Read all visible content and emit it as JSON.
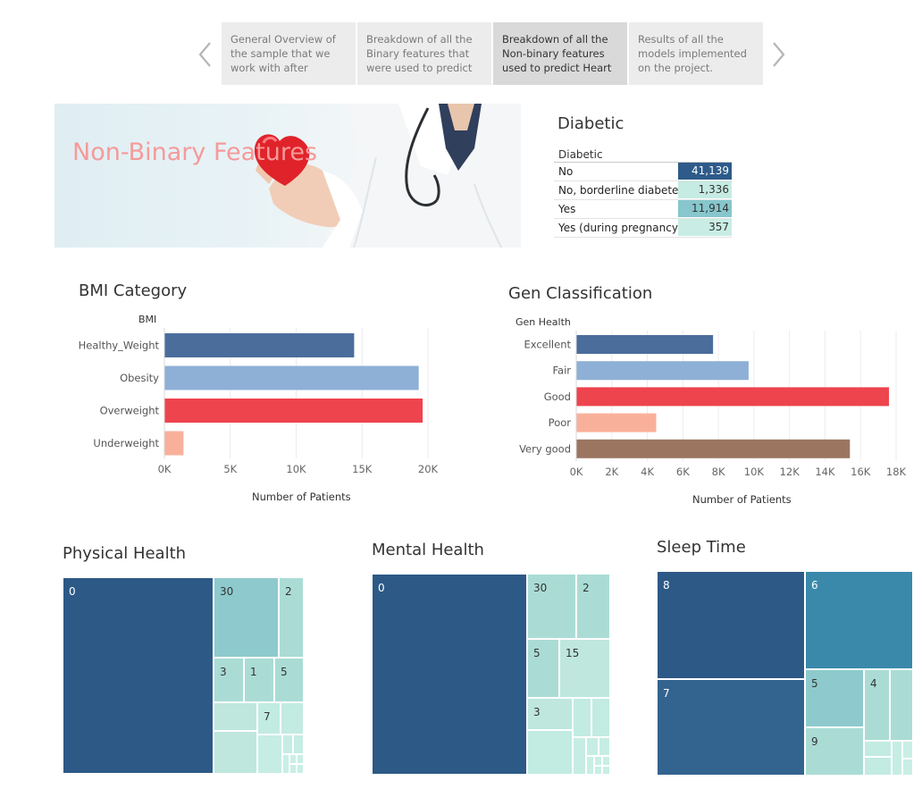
{
  "story": {
    "points": [
      {
        "text": "General Overview of the sample that we work with after",
        "active": false
      },
      {
        "text": "Breakdown of all the Binary features that were used to predict",
        "active": false
      },
      {
        "text": "Breakdown of all the Non-binary features used to predict Heart",
        "active": true
      },
      {
        "text": "Results of all the models implemented on the project.",
        "active": false
      }
    ]
  },
  "banner": {
    "title": "Non-Binary Features"
  },
  "diabetic": {
    "title": "Diabetic",
    "column_header": "Diabetic",
    "rows": [
      {
        "label": "No",
        "value": "41,139",
        "color": "#2e5b8a",
        "text_color": "#ffffff"
      },
      {
        "label": "No, borderline diabetes",
        "value": "1,336",
        "color": "#c6ebe2",
        "text_color": "#333333"
      },
      {
        "label": "Yes",
        "value": "11,914",
        "color": "#86c6cc",
        "text_color": "#333333"
      },
      {
        "label": "Yes (during pregnancy)",
        "value": "357",
        "color": "#c9ede4",
        "text_color": "#333333"
      }
    ]
  },
  "bmi": {
    "title": "BMI Category",
    "field": "BMI",
    "axis_title": "Number of Patients"
  },
  "gen": {
    "title": "Gen Classification",
    "field": "Gen Health",
    "axis_title": "Number of Patients"
  },
  "chart_data": [
    {
      "type": "bar",
      "orientation": "horizontal",
      "title": "BMI Category",
      "ylabel": "BMI",
      "xlabel": "Number of Patients",
      "categories": [
        "Healthy_Weight",
        "Obesity",
        "Overweight",
        "Underweight"
      ],
      "values": [
        14400,
        19300,
        19600,
        1450
      ],
      "colors": [
        "#4a6d9c",
        "#8eb0d7",
        "#ee444e",
        "#f9b09b"
      ],
      "xlim": [
        0,
        20000
      ],
      "ticks": [
        "0K",
        "5K",
        "10K",
        "15K",
        "20K"
      ],
      "grid": true
    },
    {
      "type": "bar",
      "orientation": "horizontal",
      "title": "Gen Classification",
      "ylabel": "Gen Health",
      "xlabel": "Number of Patients",
      "categories": [
        "Excellent",
        "Fair",
        "Good",
        "Poor",
        "Very good"
      ],
      "values": [
        7700,
        9700,
        17600,
        4500,
        15400
      ],
      "colors": [
        "#4a6d9c",
        "#8eb0d7",
        "#ee444e",
        "#f9b09b",
        "#9c7560"
      ],
      "xlim": [
        0,
        18000
      ],
      "ticks": [
        "0K",
        "2K",
        "4K",
        "6K",
        "8K",
        "10K",
        "12K",
        "14K",
        "16K",
        "18K"
      ],
      "grid": true
    }
  ],
  "physical": {
    "title": "Physical Health",
    "labels": {
      "0": "0",
      "30": "30",
      "2": "2",
      "3": "3",
      "1": "1",
      "5": "5",
      "7": "7"
    }
  },
  "mental": {
    "title": "Mental Health",
    "labels": {
      "0": "0",
      "30": "30",
      "2": "2",
      "5": "5",
      "15": "15",
      "3": "3"
    }
  },
  "sleep": {
    "title": "Sleep Time",
    "labels": {
      "8": "8",
      "6": "6",
      "7": "7",
      "5": "5",
      "4": "4",
      "9": "9"
    }
  },
  "colors": {
    "treemap_dark": "#2d5986",
    "treemap_mid": "#33638f",
    "treemap_teal": "#3a89aa",
    "treemap_light": "#8ecacd",
    "treemap_lighter": "#aadcd5",
    "treemap_lightest": "#c2ebe1"
  }
}
